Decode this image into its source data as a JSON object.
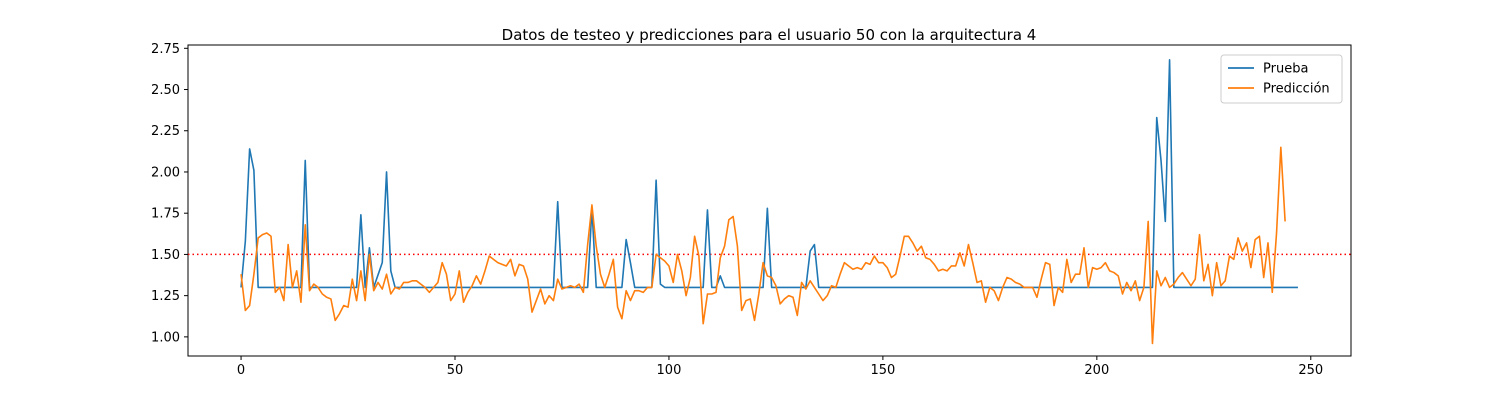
{
  "chart_data": {
    "type": "line",
    "title": "Datos de testeo y predicciones para el usuario 50 con la arquitectura 4",
    "xlabel": "",
    "ylabel": "",
    "xlim": [
      -12.4,
      259.4
    ],
    "ylim": [
      0.884,
      2.77
    ],
    "xticks": [
      0,
      50,
      100,
      150,
      200,
      250
    ],
    "yticks": [
      1.0,
      1.25,
      1.5,
      1.75,
      2.0,
      2.25,
      2.5,
      2.75
    ],
    "ytick_labels": [
      "1.00",
      "1.25",
      "1.50",
      "1.75",
      "2.00",
      "2.25",
      "2.50",
      "2.75"
    ],
    "grid": false,
    "legend_position": "top-right",
    "reference_line": {
      "y": 1.5,
      "color": "#ff0000",
      "style": "dotted"
    },
    "series": [
      {
        "name": "Prueba",
        "color": "#1f77b4",
        "points": [
          [
            0,
            1.3
          ],
          [
            1,
            1.58
          ],
          [
            2,
            2.14
          ],
          [
            3,
            2.01
          ],
          [
            4,
            1.3
          ],
          [
            5,
            1.3
          ],
          [
            14,
            1.3
          ],
          [
            15,
            2.07
          ],
          [
            16,
            1.3
          ],
          [
            27,
            1.3
          ],
          [
            28,
            1.74
          ],
          [
            29,
            1.3
          ],
          [
            30,
            1.54
          ],
          [
            31,
            1.3
          ],
          [
            33,
            1.45
          ],
          [
            34,
            2.0
          ],
          [
            35,
            1.4
          ],
          [
            36,
            1.3
          ],
          [
            73,
            1.3
          ],
          [
            74,
            1.82
          ],
          [
            75,
            1.3
          ],
          [
            81,
            1.3
          ],
          [
            82,
            1.78
          ],
          [
            83,
            1.3
          ],
          [
            89,
            1.3
          ],
          [
            90,
            1.59
          ],
          [
            91,
            1.45
          ],
          [
            92,
            1.3
          ],
          [
            96,
            1.3
          ],
          [
            97,
            1.95
          ],
          [
            98,
            1.32
          ],
          [
            99,
            1.3
          ],
          [
            108,
            1.3
          ],
          [
            109,
            1.77
          ],
          [
            110,
            1.3
          ],
          [
            111,
            1.3
          ],
          [
            112,
            1.37
          ],
          [
            113,
            1.3
          ],
          [
            122,
            1.3
          ],
          [
            123,
            1.78
          ],
          [
            124,
            1.3
          ],
          [
            132,
            1.3
          ],
          [
            133,
            1.52
          ],
          [
            134,
            1.56
          ],
          [
            135,
            1.3
          ],
          [
            213,
            1.3
          ],
          [
            214,
            2.33
          ],
          [
            215,
            2.07
          ],
          [
            216,
            1.7
          ],
          [
            217,
            2.68
          ],
          [
            218,
            1.3
          ],
          [
            247,
            1.3
          ]
        ]
      },
      {
        "name": "Predicción",
        "color": "#ff7f0e",
        "values": [
          1.38,
          1.16,
          1.19,
          1.38,
          1.6,
          1.62,
          1.63,
          1.61,
          1.27,
          1.3,
          1.22,
          1.56,
          1.3,
          1.4,
          1.21,
          1.68,
          1.28,
          1.32,
          1.3,
          1.26,
          1.24,
          1.23,
          1.1,
          1.14,
          1.19,
          1.18,
          1.35,
          1.22,
          1.4,
          1.22,
          1.5,
          1.28,
          1.33,
          1.29,
          1.38,
          1.26,
          1.3,
          1.29,
          1.33,
          1.33,
          1.34,
          1.34,
          1.32,
          1.3,
          1.27,
          1.3,
          1.33,
          1.45,
          1.38,
          1.22,
          1.26,
          1.4,
          1.21,
          1.27,
          1.31,
          1.37,
          1.32,
          1.4,
          1.49,
          1.47,
          1.45,
          1.44,
          1.43,
          1.47,
          1.37,
          1.44,
          1.43,
          1.35,
          1.15,
          1.22,
          1.29,
          1.2,
          1.25,
          1.22,
          1.35,
          1.29,
          1.3,
          1.31,
          1.3,
          1.32,
          1.27,
          1.56,
          1.8,
          1.55,
          1.38,
          1.3,
          1.38,
          1.47,
          1.18,
          1.11,
          1.28,
          1.22,
          1.28,
          1.28,
          1.27,
          1.3,
          1.3,
          1.5,
          1.48,
          1.46,
          1.43,
          1.33,
          1.5,
          1.4,
          1.25,
          1.36,
          1.61,
          1.49,
          1.08,
          1.26,
          1.26,
          1.27,
          1.48,
          1.55,
          1.71,
          1.73,
          1.55,
          1.16,
          1.22,
          1.23,
          1.1,
          1.26,
          1.45,
          1.37,
          1.36,
          1.31,
          1.2,
          1.23,
          1.25,
          1.24,
          1.13,
          1.33,
          1.29,
          1.34,
          1.3,
          1.26,
          1.22,
          1.25,
          1.31,
          1.3,
          1.38,
          1.45,
          1.43,
          1.41,
          1.42,
          1.41,
          1.45,
          1.44,
          1.49,
          1.45,
          1.45,
          1.42,
          1.36,
          1.38,
          1.49,
          1.61,
          1.61,
          1.57,
          1.52,
          1.55,
          1.48,
          1.47,
          1.44,
          1.4,
          1.41,
          1.4,
          1.43,
          1.43,
          1.51,
          1.43,
          1.56,
          1.45,
          1.33,
          1.34,
          1.21,
          1.3,
          1.28,
          1.22,
          1.3,
          1.36,
          1.35,
          1.33,
          1.32,
          1.3,
          1.3,
          1.3,
          1.24,
          1.35,
          1.45,
          1.44,
          1.19,
          1.3,
          1.27,
          1.47,
          1.33,
          1.38,
          1.38,
          1.54,
          1.3,
          1.42,
          1.41,
          1.42,
          1.45,
          1.4,
          1.39,
          1.37,
          1.26,
          1.33,
          1.28,
          1.34,
          1.22,
          1.3,
          1.7,
          0.96,
          1.4,
          1.31,
          1.36,
          1.3,
          1.32,
          1.36,
          1.39,
          1.35,
          1.31,
          1.35,
          1.62,
          1.34,
          1.44,
          1.25,
          1.45,
          1.31,
          1.34,
          1.49,
          1.47,
          1.6,
          1.52,
          1.57,
          1.42,
          1.59,
          1.61,
          1.36,
          1.57,
          1.27,
          1.63,
          2.15,
          1.7
        ]
      }
    ]
  }
}
